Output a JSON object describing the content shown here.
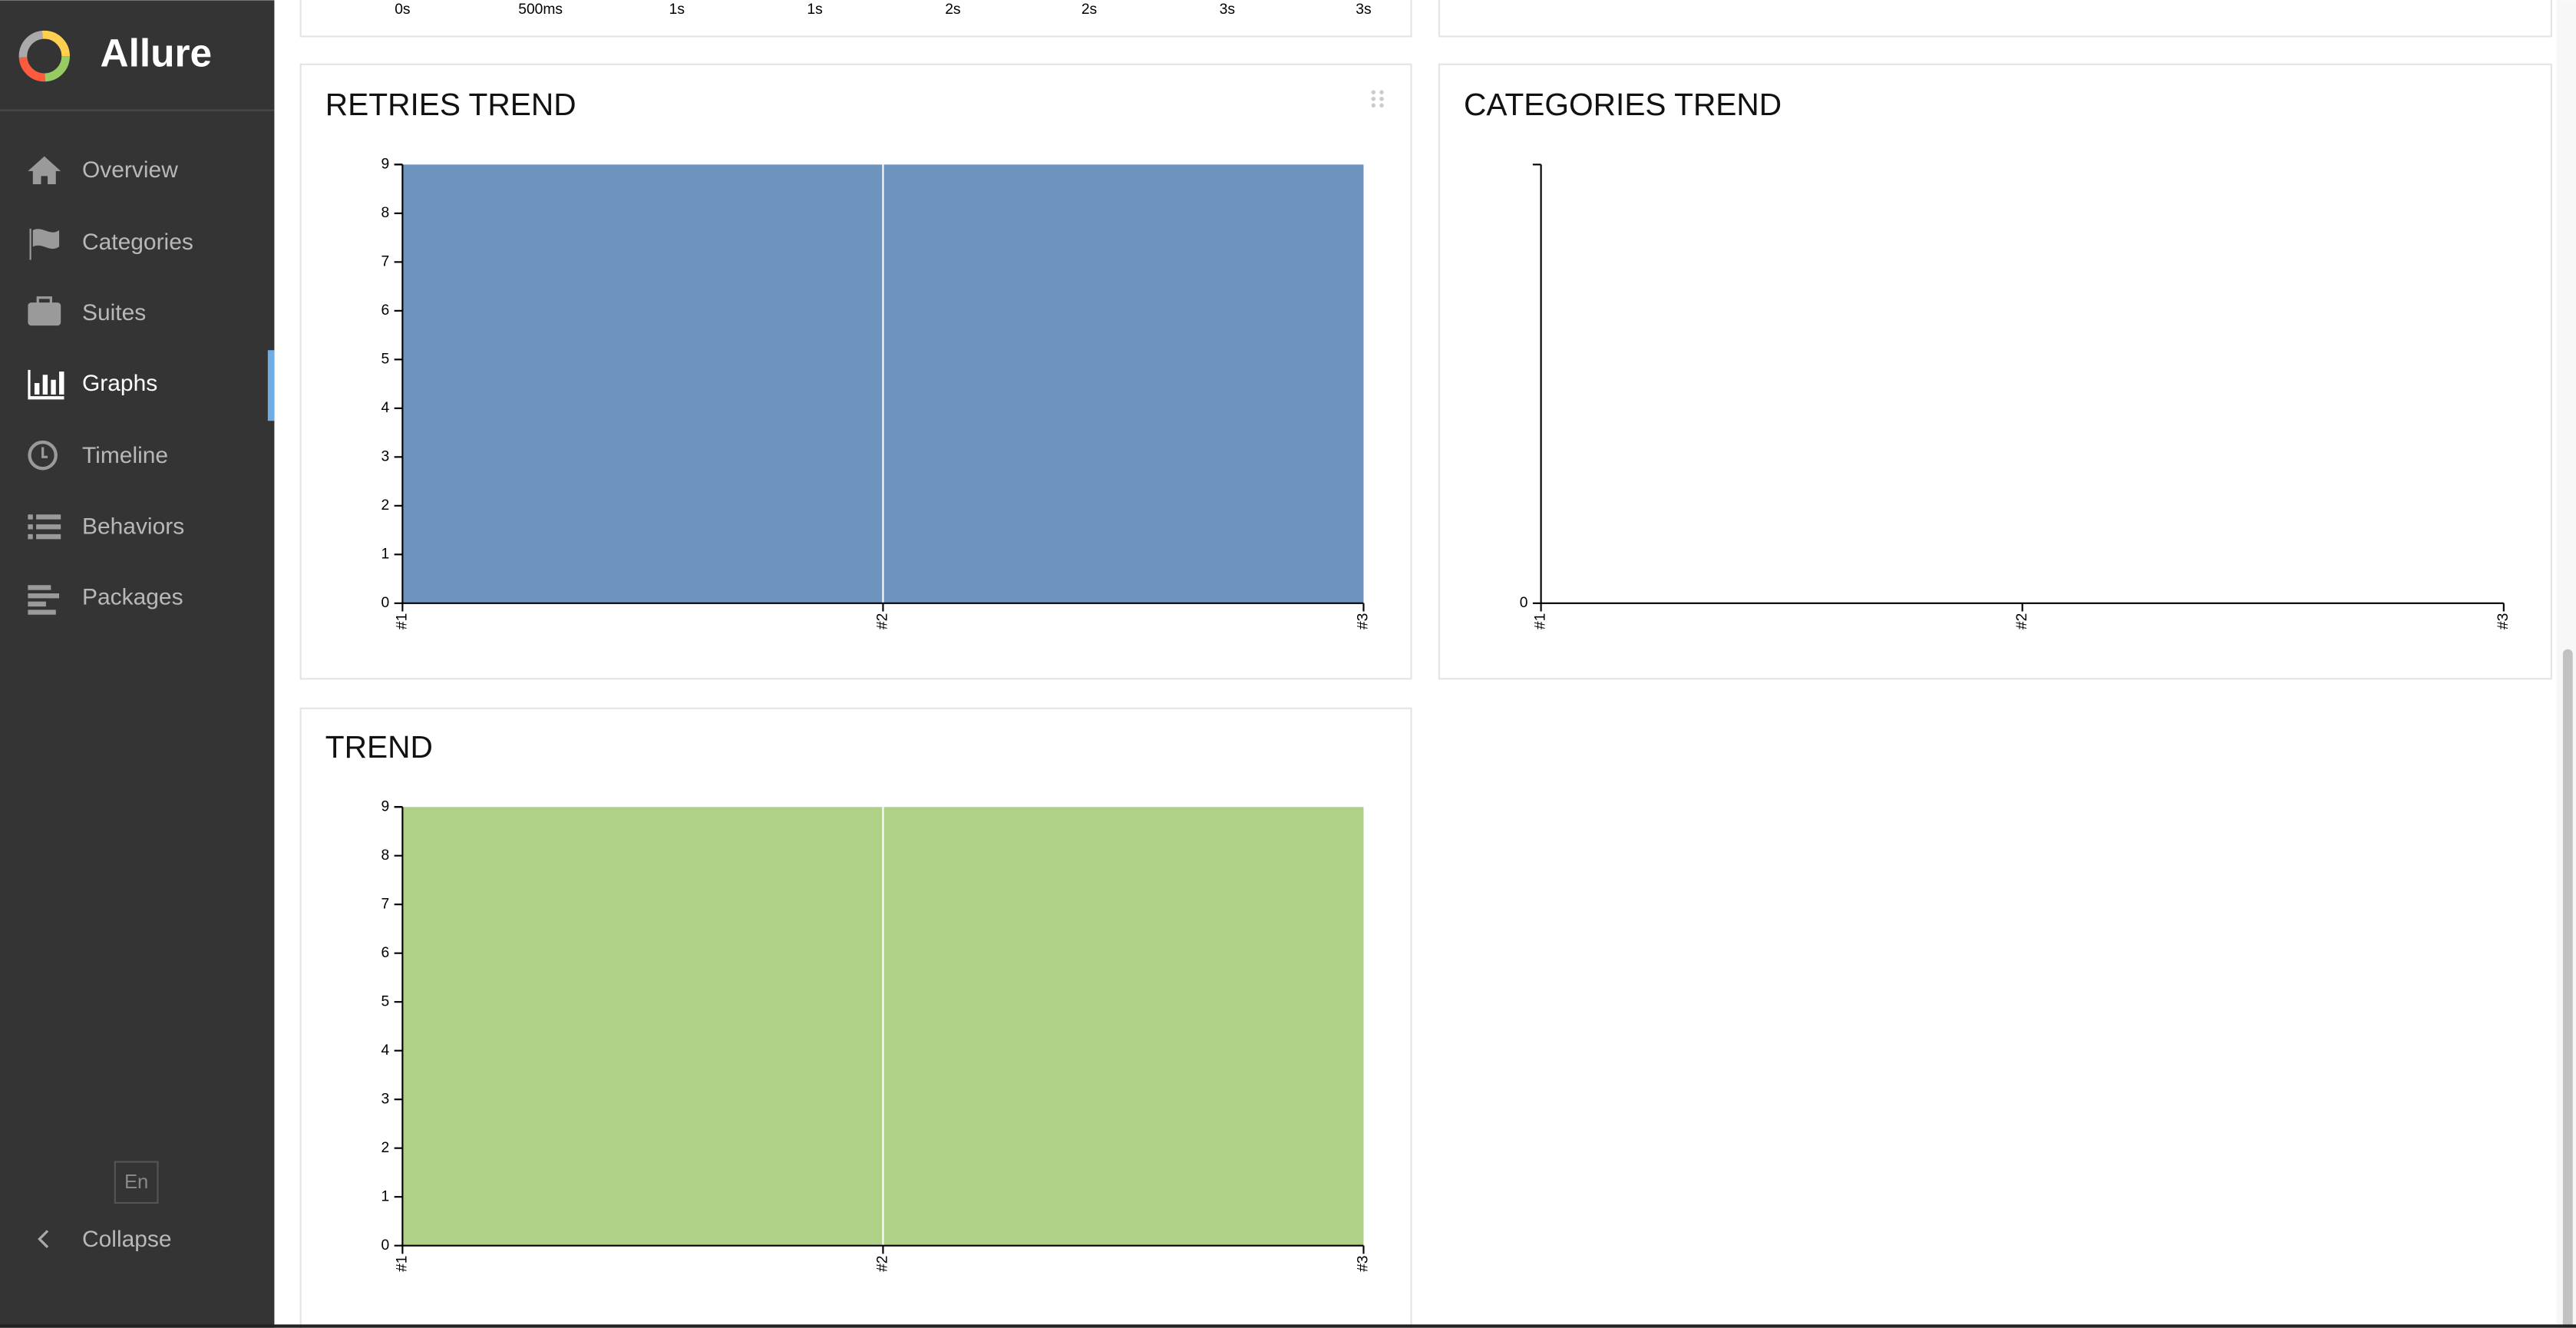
{
  "sidebar": {
    "app_name": "Allure",
    "menu": [
      "Overview",
      "Categories",
      "Suites",
      "Graphs",
      "Timeline",
      "Behaviors",
      "Packages"
    ],
    "active": "Graphs",
    "language": "En",
    "collapse": "Collapse"
  },
  "duration_axis": {
    "labels": [
      "0s",
      "500ms",
      "1s",
      "1s",
      "2s",
      "2s",
      "3s",
      "3s"
    ]
  },
  "chart_data": [
    {
      "type": "area",
      "title": "RETRIES TREND",
      "categories": [
        "#1",
        "#2",
        "#3"
      ],
      "series": [
        {
          "color": "#6d94bc",
          "values": [
            9,
            9,
            9
          ]
        }
      ],
      "ylim": [
        0,
        9
      ],
      "yticks": [
        0,
        1,
        2,
        3,
        4,
        5,
        6,
        7,
        8,
        9
      ]
    },
    {
      "type": "empty",
      "title": "CATEGORIES TREND",
      "categories": [
        "#1",
        "#2",
        "#3"
      ],
      "yticks": [
        0
      ]
    },
    {
      "type": "area",
      "title": "TREND",
      "categories": [
        "#1",
        "#2",
        "#3"
      ],
      "series": [
        {
          "color": "#afd187",
          "values": [
            9,
            9,
            9
          ]
        }
      ],
      "ylim": [
        0,
        9
      ],
      "yticks": [
        0,
        1,
        2,
        3,
        4,
        5,
        6,
        7,
        8,
        9
      ]
    }
  ]
}
